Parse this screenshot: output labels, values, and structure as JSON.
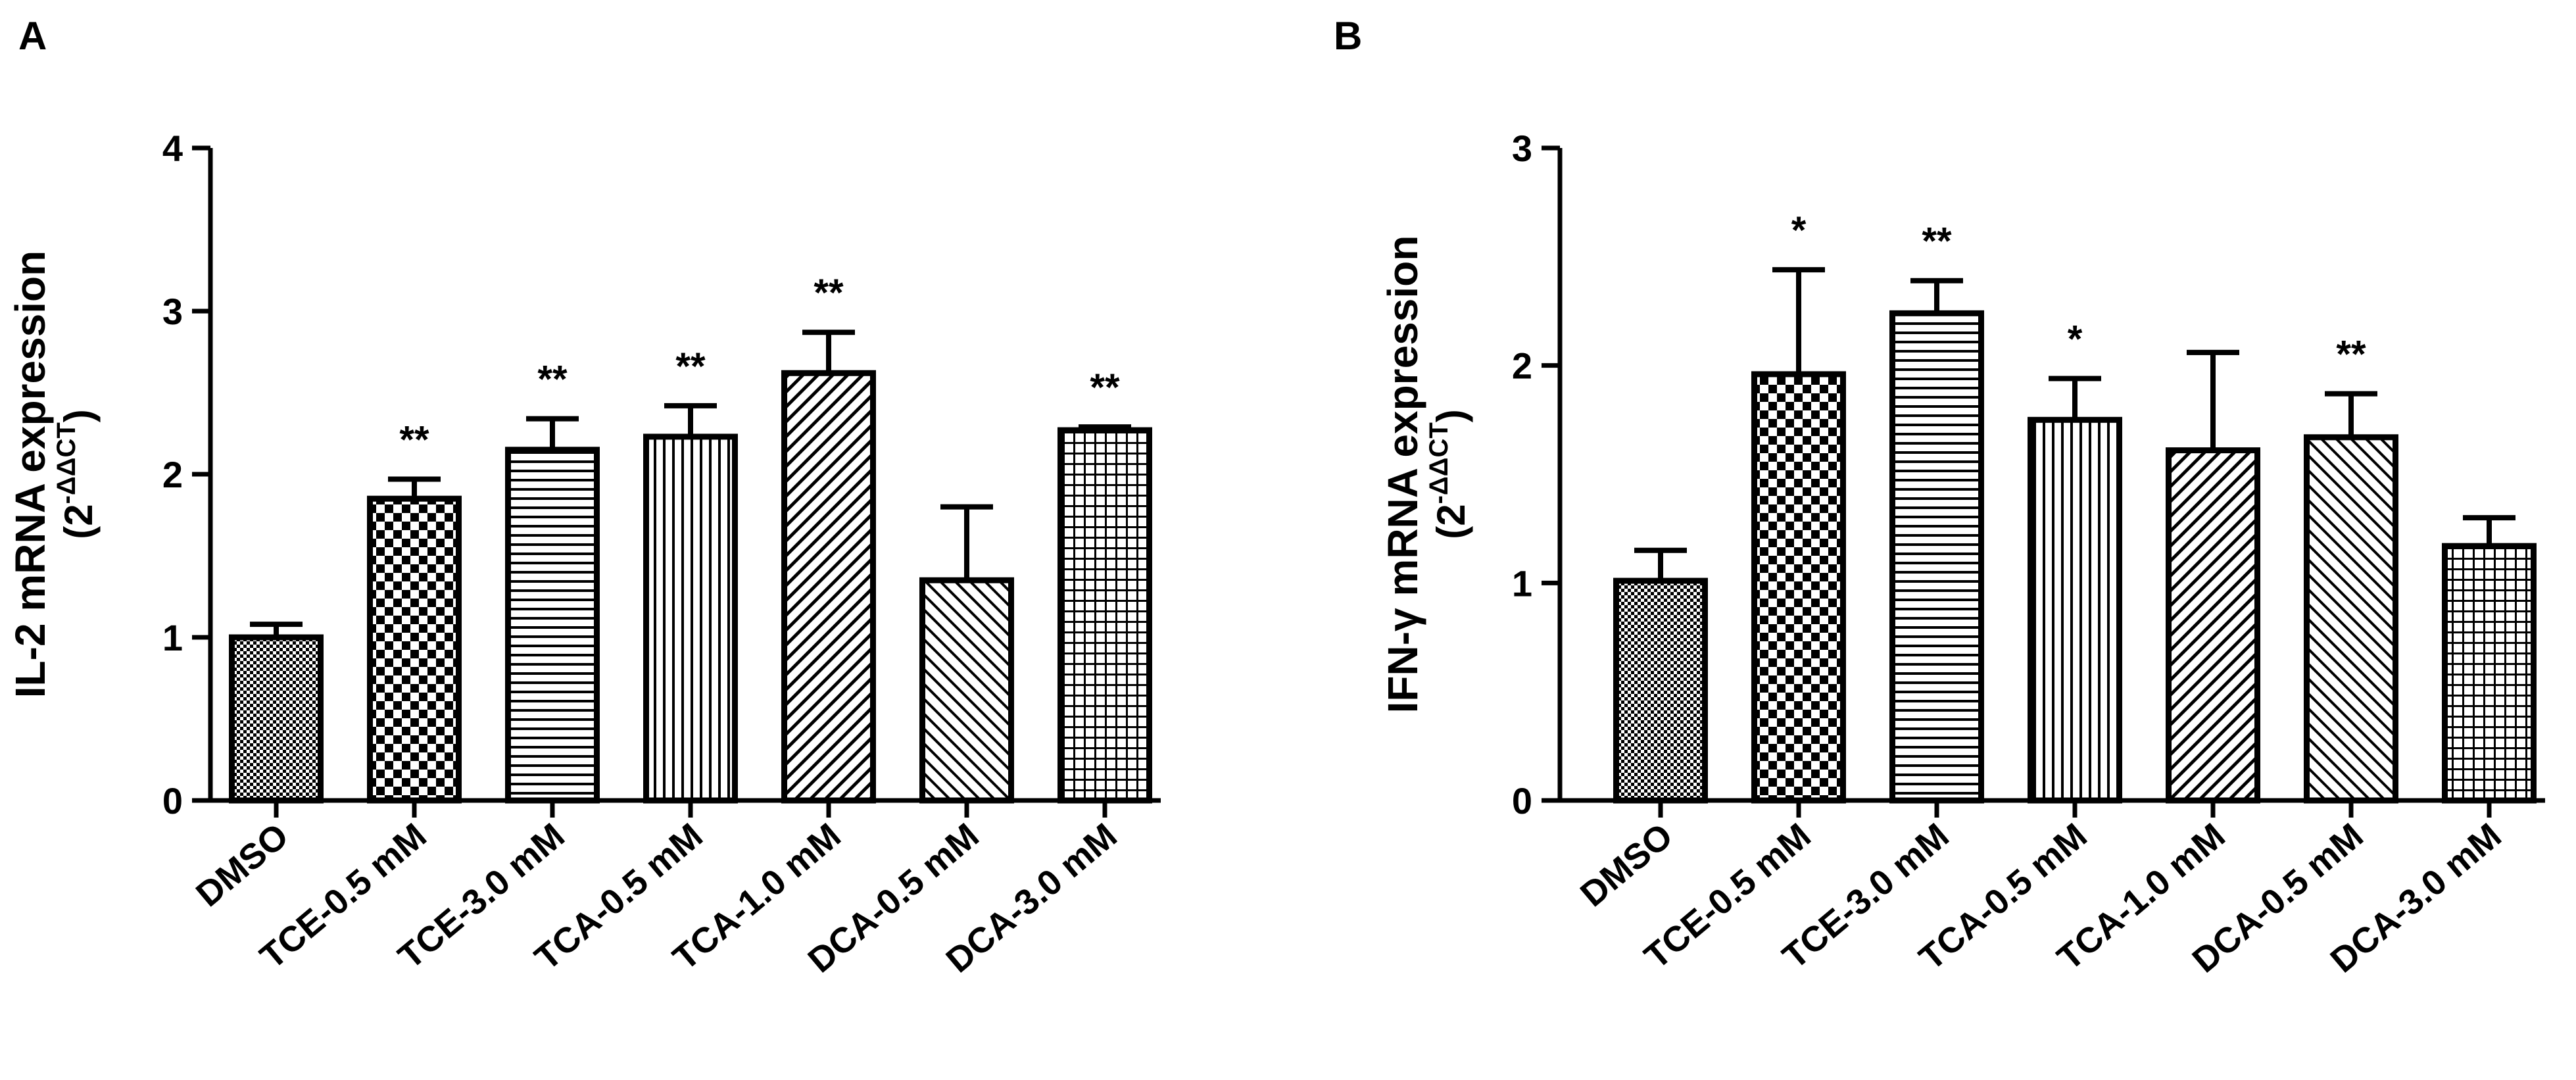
{
  "chart_data": [
    {
      "panel_label": "A",
      "type": "bar",
      "ylabel_main": "IL-2 mRNA expression",
      "ylabel_unit_open": "(2",
      "ylabel_unit_exp": "-ΔΔCT",
      "ylabel_unit_close": ")",
      "ylim": [
        0,
        4
      ],
      "yticks": [
        "0",
        "1",
        "2",
        "3",
        "4"
      ],
      "categories": [
        "DMSO",
        "TCE-0.5 mM",
        "TCE-3.0 mM",
        "TCA-0.5 mM",
        "TCA-1.0 mM",
        "DCA-0.5 mM",
        "DCA-3.0 mM"
      ],
      "values": [
        1.0,
        1.85,
        2.15,
        2.23,
        2.62,
        1.35,
        2.27
      ],
      "errors": [
        0.08,
        0.12,
        0.19,
        0.19,
        0.25,
        0.45,
        0.02
      ],
      "significance": [
        "",
        "**",
        "**",
        "**",
        "**",
        "",
        "**"
      ],
      "patterns": [
        "fine-dots",
        "checker",
        "horizontal",
        "vertical",
        "diag-up",
        "diag-down",
        "grid"
      ]
    },
    {
      "panel_label": "B",
      "type": "bar",
      "ylabel_main": "IFN-γ  mRNA expression",
      "ylabel_unit_open": "(2",
      "ylabel_unit_exp": "-ΔΔCT",
      "ylabel_unit_close": ")",
      "ylim": [
        0,
        3
      ],
      "yticks": [
        "0",
        "1",
        "2",
        "3"
      ],
      "categories": [
        "DMSO",
        "TCE-0.5 mM",
        "TCE-3.0 mM",
        "TCA-0.5 mM",
        "TCA-1.0 mM",
        "DCA-0.5 mM",
        "DCA-3.0 mM"
      ],
      "values": [
        1.01,
        1.96,
        2.24,
        1.75,
        1.61,
        1.67,
        1.17
      ],
      "errors": [
        0.14,
        0.48,
        0.15,
        0.19,
        0.45,
        0.2,
        0.13
      ],
      "significance": [
        "",
        "*",
        "**",
        "*",
        "",
        "**",
        ""
      ],
      "patterns": [
        "fine-dots",
        "checker",
        "horizontal",
        "vertical",
        "diag-up",
        "diag-down",
        "grid"
      ]
    }
  ]
}
